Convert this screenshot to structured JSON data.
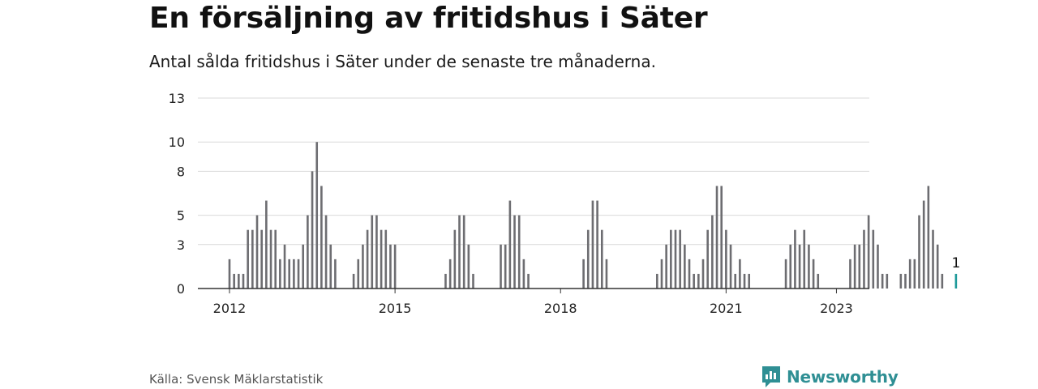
{
  "header": {
    "title": "En försäljning av fritidshus i Säter",
    "subtitle": "Antal sålda fritidshus i Säter under de senaste tre månaderna."
  },
  "footer": {
    "source": "Källa: Svensk Mäklarstatistik",
    "brand": "Newsworthy",
    "brand_icon": "newsworthy-logo-icon",
    "brand_color": "#2f8f94"
  },
  "colors": {
    "bar": "#6d6d71",
    "highlight": "#1e9a9a",
    "grid": "#d9d9d9",
    "axis": "#333333"
  },
  "chart_data": {
    "type": "bar",
    "title": "En försäljning av fritidshus i Säter",
    "subtitle": "Antal sålda fritidshus i Säter under de senaste tre månaderna.",
    "xlabel": "",
    "ylabel": "",
    "x_start": "2012-01",
    "x_interval": "month",
    "x_ticks": [
      "2012",
      "2015",
      "2018",
      "2021",
      "2023"
    ],
    "y_ticks": [
      0,
      3,
      5,
      8,
      10,
      13
    ],
    "ylim": [
      0,
      13
    ],
    "grid": true,
    "highlight_last": true,
    "last_value_label": "1",
    "values": [
      2,
      1,
      1,
      1,
      4,
      4,
      5,
      4,
      6,
      4,
      4,
      2,
      3,
      2,
      2,
      2,
      3,
      5,
      8,
      10,
      7,
      5,
      3,
      2,
      0,
      0,
      0,
      1,
      2,
      3,
      4,
      5,
      5,
      4,
      4,
      3,
      3,
      0,
      0,
      0,
      0,
      0,
      0,
      0,
      0,
      0,
      0,
      1,
      2,
      4,
      5,
      5,
      3,
      1,
      0,
      0,
      0,
      0,
      0,
      3,
      3,
      6,
      5,
      5,
      2,
      1,
      0,
      0,
      0,
      0,
      0,
      0,
      0,
      0,
      0,
      0,
      0,
      2,
      4,
      6,
      6,
      4,
      2,
      0,
      0,
      0,
      0,
      0,
      0,
      0,
      0,
      0,
      0,
      1,
      2,
      3,
      4,
      4,
      4,
      3,
      2,
      1,
      1,
      2,
      4,
      5,
      7,
      7,
      4,
      3,
      1,
      2,
      1,
      1,
      0,
      0,
      0,
      0,
      0,
      0,
      0,
      2,
      3,
      4,
      3,
      4,
      3,
      2,
      1,
      0,
      0,
      0,
      0,
      0,
      0,
      2,
      3,
      3,
      4,
      5,
      4,
      3,
      1,
      1,
      0,
      0,
      1,
      1,
      2,
      2,
      5,
      6,
      7,
      4,
      3,
      1,
      0,
      0,
      1
    ]
  }
}
